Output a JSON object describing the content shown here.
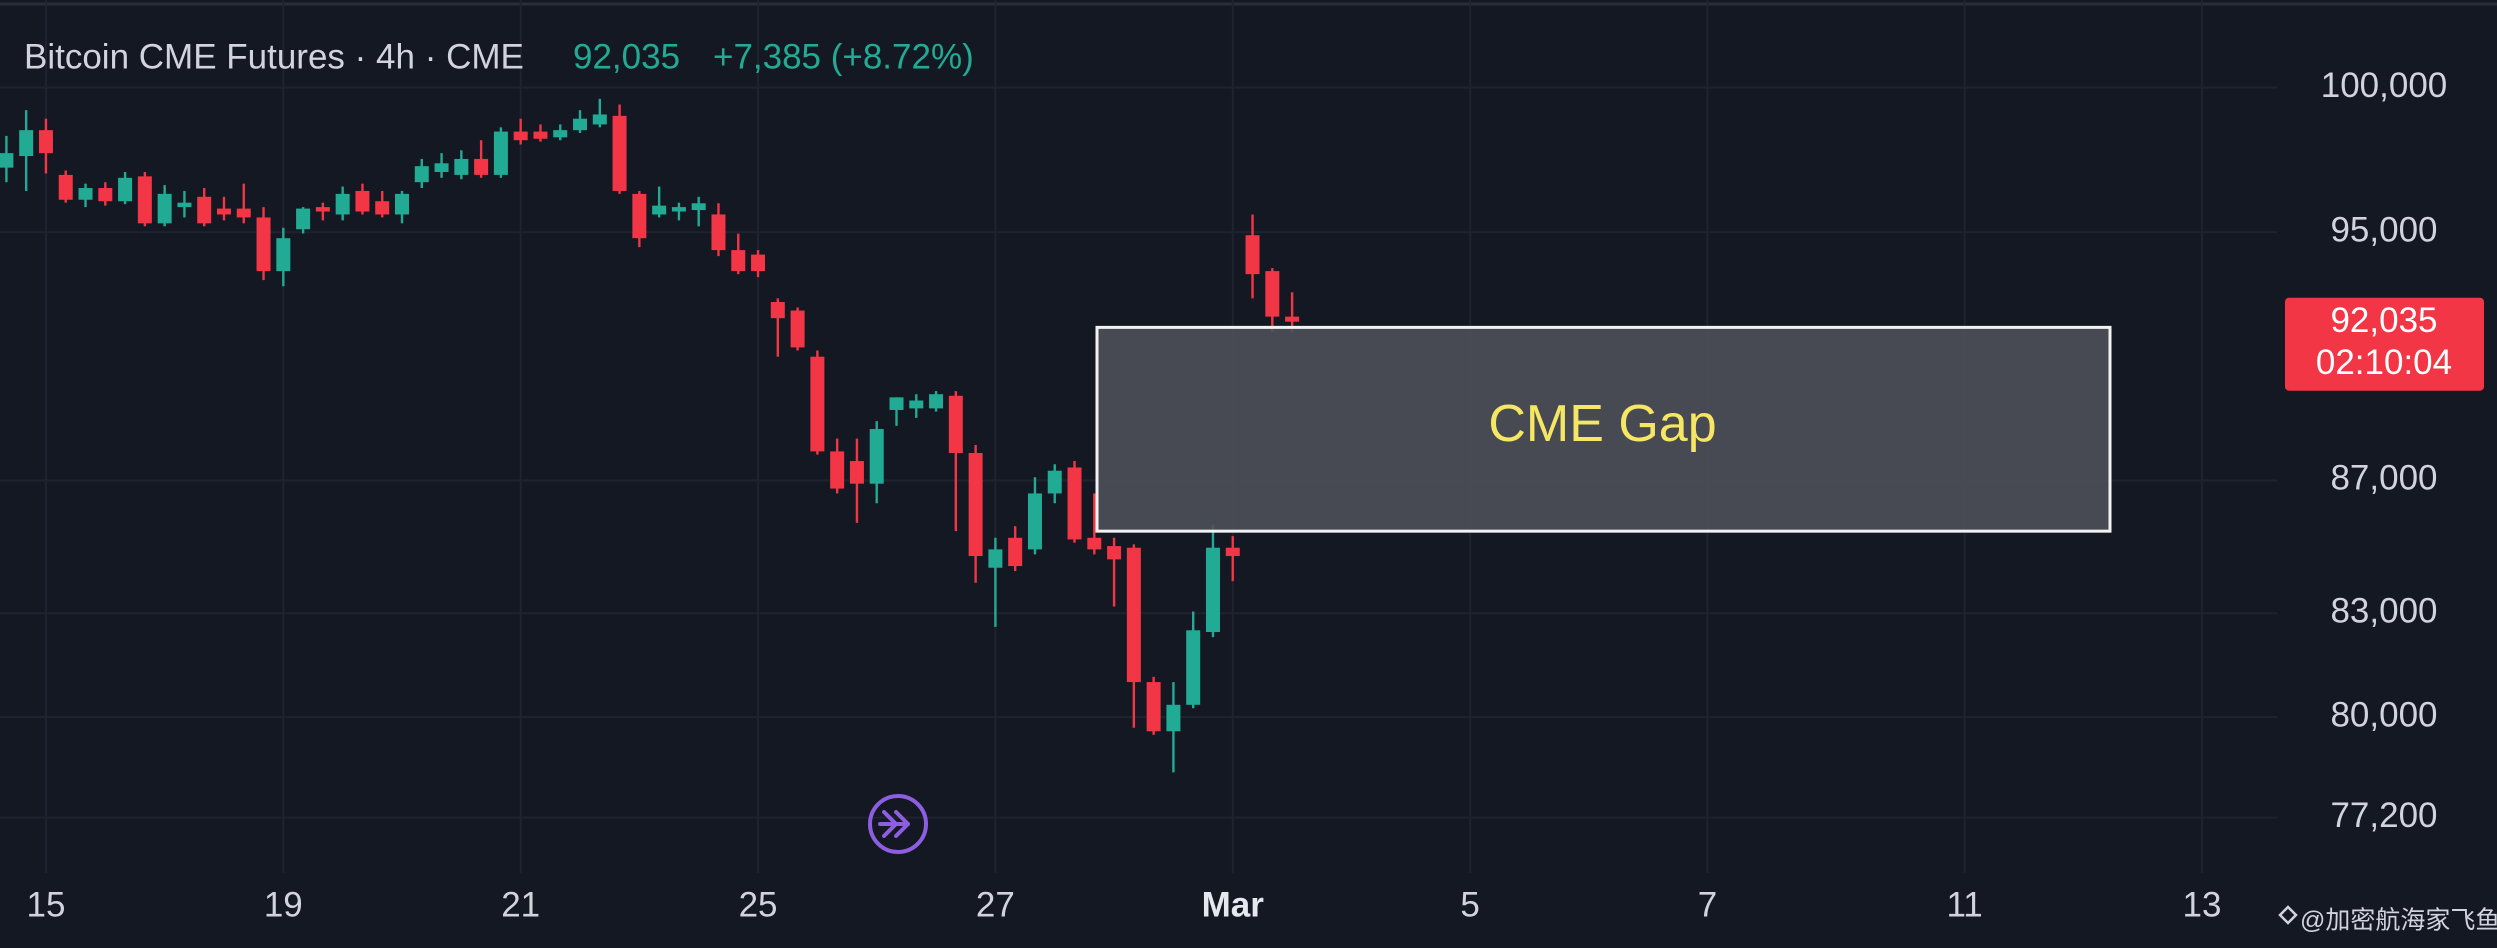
{
  "chart_data": {
    "type": "candlestick",
    "title": "Bitcoin CME Futures · 4h · CME",
    "last_price": {
      "value": 92035,
      "label": "92,035"
    },
    "change": "+7,385 (+8.72%)",
    "countdown": "02:10:04",
    "watermark": "@加密航海家飞鱼",
    "up_color": "#22ab94",
    "down_color": "#f23645",
    "log_scale": true,
    "grid": true,
    "ylim": [
      75700,
      103150
    ],
    "yticks": [
      {
        "value": 100000,
        "label": "100,000"
      },
      {
        "value": 95000,
        "label": "95,000"
      },
      {
        "value": 87000,
        "label": "87,000"
      },
      {
        "value": 83000,
        "label": "83,000"
      },
      {
        "value": 80000,
        "label": "80,000"
      },
      {
        "value": 77200,
        "label": "77,200"
      }
    ],
    "categories": [
      null,
      null,
      "15",
      null,
      null,
      null,
      null,
      null,
      null,
      null,
      null,
      null,
      null,
      null,
      "19",
      null,
      null,
      null,
      null,
      null,
      null,
      null,
      null,
      null,
      null,
      null,
      "21",
      null,
      null,
      null,
      null,
      null,
      null,
      null,
      null,
      null,
      null,
      null,
      "25",
      null,
      null,
      null,
      null,
      null,
      null,
      null,
      null,
      null,
      null,
      null,
      "27",
      null,
      null,
      null,
      null,
      null,
      null,
      null,
      null,
      null,
      null,
      null,
      "Mar",
      null,
      null,
      null,
      null,
      null,
      null,
      null,
      null,
      null,
      null,
      null,
      "5",
      null,
      null,
      null,
      null,
      null,
      null,
      null,
      null,
      null,
      null,
      null,
      "7",
      null,
      null,
      null,
      null,
      null,
      null,
      null,
      null,
      null,
      null,
      null,
      null,
      "11",
      null,
      null,
      null,
      null,
      null,
      null,
      null,
      null,
      null,
      null,
      null,
      "13",
      null,
      null,
      null
    ],
    "open": [
      97200,
      97600,
      98500,
      96950,
      96100,
      96500,
      96050,
      96900,
      95300,
      95850,
      96200,
      95800,
      95800,
      95500,
      93700,
      95100,
      95850,
      95600,
      96400,
      96050,
      95600,
      96700,
      97050,
      96950,
      97500,
      96950,
      98450,
      98450,
      98250,
      98500,
      98700,
      99000,
      96300,
      95600,
      95700,
      95750,
      95600,
      94400,
      94250,
      92680,
      92400,
      90900,
      87900,
      87600,
      86900,
      89200,
      89250,
      89250,
      89650,
      87850,
      84350,
      85250,
      84900,
      86600,
      87400,
      85250,
      85000,
      84950,
      81000,
      79600,
      80350,
      82450,
      84950,
      94900,
      93700,
      92200,
      null,
      null,
      null,
      null,
      null,
      null,
      null,
      null,
      null,
      null,
      null,
      null,
      null,
      null,
      null,
      null,
      null,
      null,
      null,
      null,
      null,
      null,
      null,
      null,
      null,
      null,
      null,
      null,
      null,
      null,
      null,
      null,
      null,
      null,
      null,
      null,
      null,
      null,
      null,
      null,
      null,
      null,
      null,
      null,
      null,
      null,
      null,
      null,
      null
    ],
    "high": [
      98300,
      99200,
      98900,
      97100,
      96650,
      96700,
      97050,
      97050,
      96600,
      96400,
      96500,
      96200,
      96650,
      95850,
      95150,
      95850,
      96000,
      96550,
      96650,
      96400,
      96400,
      97500,
      97700,
      97800,
      98150,
      98600,
      98900,
      98700,
      98700,
      99200,
      99600,
      99400,
      96400,
      96550,
      96000,
      96200,
      95980,
      94950,
      94400,
      92800,
      92500,
      91100,
      88300,
      88300,
      88850,
      89600,
      89700,
      89800,
      89800,
      88100,
      85250,
      85600,
      87100,
      87500,
      87600,
      86600,
      85250,
      85050,
      81150,
      81000,
      83050,
      85650,
      85300,
      95600,
      93800,
      93000,
      null,
      null,
      null,
      null,
      null,
      null,
      null,
      null,
      null,
      null,
      null,
      null,
      null,
      null,
      null,
      null,
      null,
      null,
      null,
      null,
      null,
      null,
      null,
      null,
      null,
      null,
      null,
      null,
      null,
      null,
      null,
      null,
      null,
      null,
      null,
      null,
      null,
      null,
      null,
      null,
      null,
      null,
      null,
      null,
      null,
      null,
      null,
      null,
      null
    ],
    "low": [
      96700,
      96400,
      97000,
      96000,
      95850,
      95900,
      95950,
      95200,
      95200,
      95500,
      95200,
      95400,
      95300,
      93400,
      93200,
      94960,
      95400,
      95400,
      95600,
      95500,
      95300,
      96500,
      96850,
      96800,
      96850,
      96850,
      98000,
      98100,
      98150,
      98400,
      98600,
      96300,
      94500,
      95500,
      95400,
      95200,
      94200,
      93600,
      93500,
      90900,
      91100,
      87800,
      86600,
      85700,
      86300,
      88700,
      88950,
      89150,
      85450,
      83900,
      82600,
      84250,
      84750,
      86300,
      85100,
      84750,
      83200,
      79700,
      79500,
      78450,
      80250,
      82300,
      83950,
      92800,
      91700,
      91700,
      null,
      null,
      null,
      null,
      null,
      null,
      null,
      null,
      null,
      null,
      null,
      null,
      null,
      null,
      null,
      null,
      null,
      null,
      null,
      null,
      null,
      null,
      null,
      null,
      null,
      null,
      null,
      null,
      null,
      null,
      null,
      null,
      null,
      null,
      null,
      null,
      null,
      null,
      null,
      null,
      null,
      null,
      null,
      null,
      null,
      null,
      null,
      null,
      null
    ],
    "close": [
      97700,
      98500,
      97700,
      96100,
      96500,
      96050,
      96850,
      95300,
      96300,
      96000,
      95300,
      95600,
      95500,
      93700,
      94800,
      95800,
      95700,
      96300,
      95700,
      95600,
      96300,
      97250,
      97350,
      97500,
      96950,
      98450,
      98150,
      98200,
      98500,
      98900,
      99050,
      96400,
      94800,
      95900,
      95850,
      95980,
      94400,
      93700,
      93700,
      92150,
      91200,
      87900,
      86750,
      86900,
      88600,
      89600,
      89500,
      89700,
      87850,
      84700,
      84900,
      84400,
      86600,
      87300,
      85200,
      84900,
      84600,
      81000,
      79600,
      80350,
      82500,
      84950,
      84700,
      93600,
      92200,
      92035,
      null,
      null,
      null,
      null,
      null,
      null,
      null,
      null,
      null,
      null,
      null,
      null,
      null,
      null,
      null,
      null,
      null,
      null,
      null,
      null,
      null,
      null,
      null,
      null,
      null,
      null,
      null,
      null,
      null,
      null,
      null,
      null,
      null,
      null,
      null,
      null,
      null,
      null,
      null,
      null,
      null,
      null,
      null,
      null,
      null,
      null,
      null,
      null,
      null
    ],
    "annotations": [
      {
        "text": "CME Gap",
        "low": 85450,
        "high": 91850
      }
    ]
  }
}
